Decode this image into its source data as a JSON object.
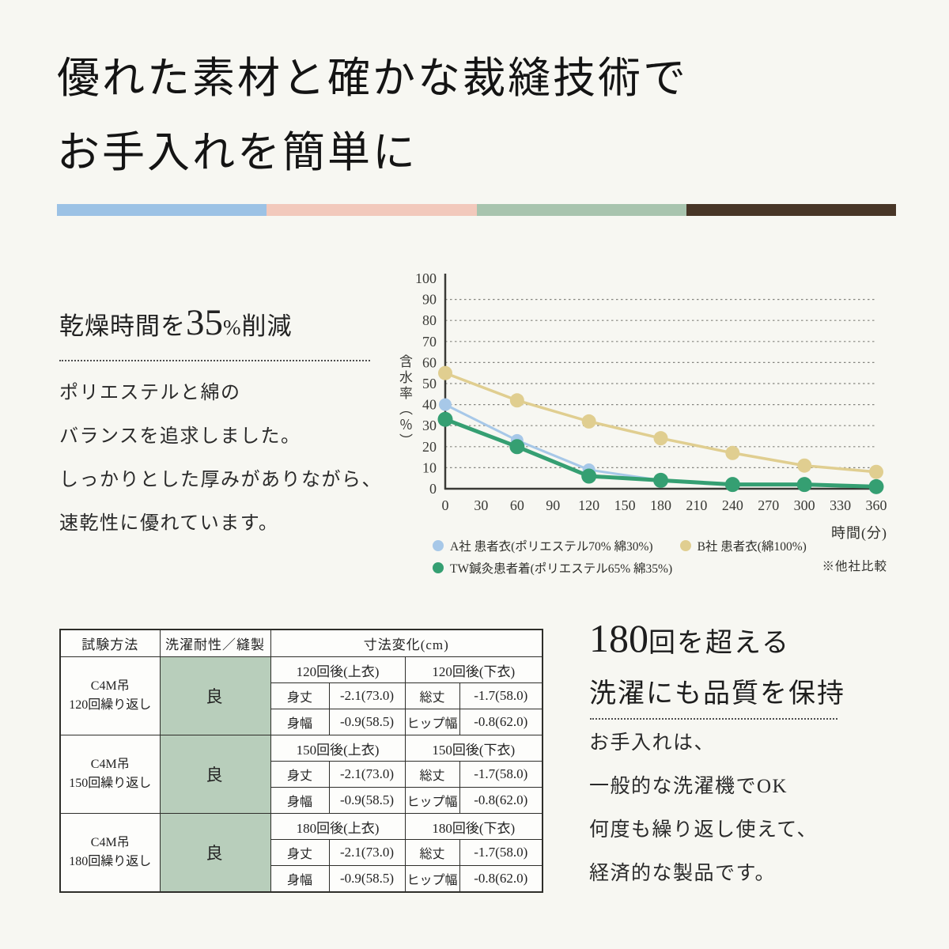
{
  "page": {
    "background": "#f7f7f2"
  },
  "title": {
    "line1": "優れた素材と確かな裁縫技術で",
    "line2": "お手入れを簡単に"
  },
  "stripe": {
    "colors": [
      "#9cc2e5",
      "#f2c9bc",
      "#a8c4ae",
      "#483627"
    ]
  },
  "dry_section": {
    "heading": {
      "pre": "乾燥時間を",
      "num": "35",
      "pct": "%",
      "suf": "削減"
    },
    "lines": [
      "ポリエステルと綿の",
      "バランスを追求しました。",
      "しっかりとした厚みがありながら、",
      "速乾性に優れています。"
    ]
  },
  "chart_data": {
    "type": "line",
    "title": "",
    "xlabel": "時間(分)",
    "ylabel": "含水率（％）",
    "xlim": [
      0,
      360
    ],
    "ylim": [
      0,
      100
    ],
    "x_ticks": [
      0,
      30,
      60,
      90,
      120,
      150,
      180,
      210,
      240,
      270,
      300,
      330,
      360
    ],
    "y_ticks": [
      0,
      10,
      20,
      30,
      40,
      50,
      60,
      70,
      80,
      90,
      100
    ],
    "grid": "horizontal dotted lines at every 10, none at 100",
    "legend_position": "bottom",
    "x": [
      0,
      60,
      120,
      180,
      240,
      300,
      360
    ],
    "series": [
      {
        "name": "A社 患者衣(ポリエステル70% 綿30%)",
        "color": "#a7c8e8",
        "values": [
          40,
          23,
          9,
          4,
          2,
          2,
          1
        ],
        "visible_markers": 3,
        "line_width": 3,
        "marker_r": 8
      },
      {
        "name": "B社 患者衣(綿100%)",
        "color": "#e0ce90",
        "values": [
          55,
          42,
          32,
          24,
          17,
          11,
          8
        ],
        "visible_markers": 7,
        "line_width": 3.5,
        "marker_r": 9
      },
      {
        "name": "TW鍼灸患者着(ポリエステル65% 綿35%)",
        "color": "#359f72",
        "values": [
          33,
          20,
          6,
          4,
          2,
          2,
          1
        ],
        "visible_markers": 7,
        "line_width": 5,
        "marker_r": 9.5
      }
    ],
    "footnote": "※他社比較"
  },
  "table": {
    "headers": {
      "col1": "試験方法",
      "col2": "洗濯耐性／縫製",
      "col3": "寸法変化(cm)"
    },
    "durability_cell_color": "#b8cebb",
    "groups": [
      {
        "method_l1": "C4M吊",
        "method_l2": "120回繰り返し",
        "durability": "良",
        "sub_left": "120回後(上衣)",
        "sub_right": "120回後(下衣)",
        "rows": [
          {
            "l1": "身丈",
            "v1": "-2.1(73.0)",
            "l2": "総丈",
            "v2": "-1.7(58.0)"
          },
          {
            "l1": "身幅",
            "v1": "-0.9(58.5)",
            "l2": "ヒップ幅",
            "v2": "-0.8(62.0)"
          }
        ]
      },
      {
        "method_l1": "C4M吊",
        "method_l2": "150回繰り返し",
        "durability": "良",
        "sub_left": "150回後(上衣)",
        "sub_right": "150回後(下衣)",
        "rows": [
          {
            "l1": "身丈",
            "v1": "-2.1(73.0)",
            "l2": "総丈",
            "v2": "-1.7(58.0)"
          },
          {
            "l1": "身幅",
            "v1": "-0.9(58.5)",
            "l2": "ヒップ幅",
            "v2": "-0.8(62.0)"
          }
        ]
      },
      {
        "method_l1": "C4M吊",
        "method_l2": "180回繰り返し",
        "durability": "良",
        "sub_left": "180回後(上衣)",
        "sub_right": "180回後(下衣)",
        "rows": [
          {
            "l1": "身丈",
            "v1": "-2.1(73.0)",
            "l2": "総丈",
            "v2": "-1.7(58.0)"
          },
          {
            "l1": "身幅",
            "v1": "-0.9(58.5)",
            "l2": "ヒップ幅",
            "v2": "-0.8(62.0)"
          }
        ]
      }
    ]
  },
  "quality_section": {
    "heading": {
      "num": "180",
      "line1_suf": "回を超える",
      "line2": "洗濯にも品質を保持"
    },
    "lines": [
      "お手入れは、",
      "一般的な洗濯機でOK",
      "何度も繰り返し使えて、",
      "経済的な製品です。"
    ]
  }
}
